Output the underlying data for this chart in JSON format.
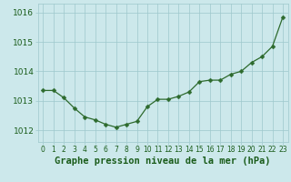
{
  "x": [
    0,
    1,
    2,
    3,
    4,
    5,
    6,
    7,
    8,
    9,
    10,
    11,
    12,
    13,
    14,
    15,
    16,
    17,
    18,
    19,
    20,
    21,
    22,
    23
  ],
  "y": [
    1013.35,
    1013.35,
    1013.1,
    1012.75,
    1012.45,
    1012.35,
    1012.2,
    1012.1,
    1012.2,
    1012.3,
    1012.8,
    1013.05,
    1013.05,
    1013.15,
    1013.3,
    1013.65,
    1013.7,
    1013.7,
    1013.9,
    1014.0,
    1014.3,
    1014.5,
    1014.85,
    1015.85
  ],
  "line_color": "#2d6a2d",
  "marker": "D",
  "marker_size": 2.5,
  "bg_color": "#cce8eb",
  "grid_color": "#9ec8cc",
  "xlabel": "Graphe pression niveau de la mer (hPa)",
  "xlabel_color": "#1a5c1a",
  "xlabel_fontsize": 7.5,
  "tick_color": "#1a5c1a",
  "ytick_fontsize": 6.5,
  "xtick_fontsize": 5.5,
  "ylim": [
    1011.6,
    1016.3
  ],
  "yticks": [
    1012,
    1013,
    1014,
    1015,
    1016
  ],
  "xlim": [
    -0.5,
    23.5
  ]
}
